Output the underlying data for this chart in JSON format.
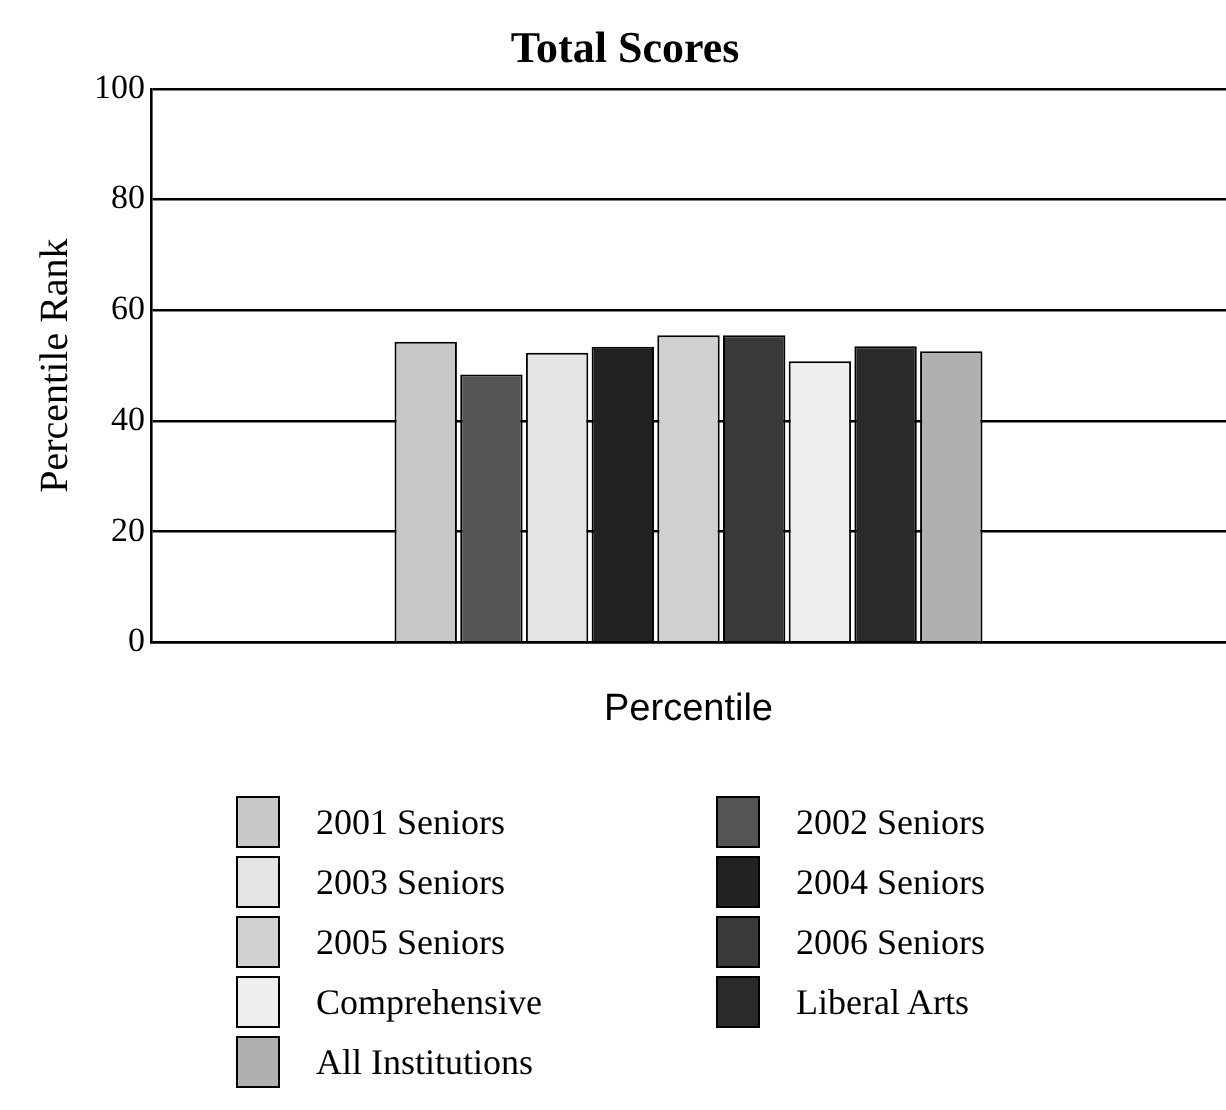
{
  "chart_data": {
    "type": "bar",
    "title": "Total Scores",
    "ylabel": "Percentile Rank",
    "categories": [
      "Percentile"
    ],
    "series": [
      {
        "name": "2001 Seniors",
        "color": "#c8c8c8",
        "values": [
          54.3
        ]
      },
      {
        "name": "2002 Seniors",
        "color": "#555555",
        "values": [
          48.4
        ]
      },
      {
        "name": "2003 Seniors",
        "color": "#e4e4e4",
        "values": [
          52.3
        ]
      },
      {
        "name": "2004 Seniors",
        "color": "#222222",
        "values": [
          53.4
        ]
      },
      {
        "name": "2005 Seniors",
        "color": "#d0d0d0",
        "values": [
          55.5
        ]
      },
      {
        "name": "2006 Seniors",
        "color": "#3a3a3a",
        "values": [
          55.5
        ]
      },
      {
        "name": "Comprehensive",
        "color": "#eeeeee",
        "values": [
          50.8
        ]
      },
      {
        "name": "Liberal Arts",
        "color": "#2a2a2a",
        "values": [
          53.5
        ]
      },
      {
        "name": "All Institutions",
        "color": "#b0b0b0",
        "values": [
          52.6
        ]
      }
    ],
    "ylim": [
      0,
      100
    ],
    "yticks": [
      0,
      20,
      40,
      60,
      80,
      100
    ],
    "grid": "y",
    "legend": "bottom"
  }
}
